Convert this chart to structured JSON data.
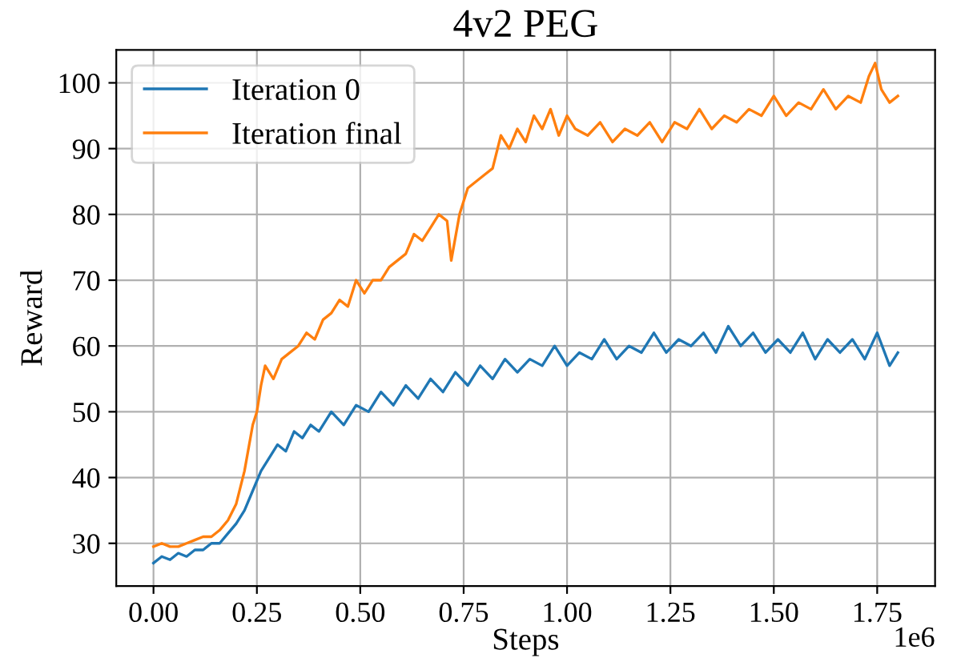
{
  "chart_data": {
    "type": "line",
    "title": "4v2 PEG",
    "xlabel": "Steps",
    "ylabel": "Reward",
    "series": [
      {
        "name": "Iteration 0",
        "color": "#1f77b4",
        "x": [
          0,
          0.02,
          0.04,
          0.06,
          0.08,
          0.1,
          0.12,
          0.14,
          0.16,
          0.18,
          0.2,
          0.22,
          0.24,
          0.26,
          0.28,
          0.3,
          0.32,
          0.34,
          0.36,
          0.38,
          0.4,
          0.43,
          0.46,
          0.49,
          0.52,
          0.55,
          0.58,
          0.61,
          0.64,
          0.67,
          0.7,
          0.73,
          0.76,
          0.79,
          0.82,
          0.85,
          0.88,
          0.91,
          0.94,
          0.97,
          1.0,
          1.03,
          1.06,
          1.09,
          1.12,
          1.15,
          1.18,
          1.21,
          1.24,
          1.27,
          1.3,
          1.33,
          1.36,
          1.39,
          1.42,
          1.45,
          1.48,
          1.51,
          1.54,
          1.57,
          1.6,
          1.63,
          1.66,
          1.69,
          1.72,
          1.75,
          1.78,
          1.8
        ],
        "values": [
          27,
          28,
          27.5,
          28.5,
          28,
          29,
          29,
          30,
          30,
          31.5,
          33,
          35,
          38,
          41,
          43,
          45,
          44,
          47,
          46,
          48,
          47,
          50,
          48,
          51,
          50,
          53,
          51,
          54,
          52,
          55,
          53,
          56,
          54,
          57,
          55,
          58,
          56,
          58,
          57,
          60,
          57,
          59,
          58,
          61,
          58,
          60,
          59,
          62,
          59,
          61,
          60,
          62,
          59,
          63,
          60,
          62,
          59,
          61,
          59,
          62,
          58,
          61,
          59,
          61,
          58,
          62,
          57,
          59
        ]
      },
      {
        "name": "Iteration final",
        "color": "#ff7f0e",
        "x": [
          0,
          0.02,
          0.04,
          0.06,
          0.08,
          0.1,
          0.12,
          0.14,
          0.16,
          0.18,
          0.2,
          0.22,
          0.24,
          0.25,
          0.26,
          0.27,
          0.29,
          0.31,
          0.33,
          0.35,
          0.37,
          0.39,
          0.41,
          0.43,
          0.45,
          0.47,
          0.49,
          0.51,
          0.53,
          0.55,
          0.57,
          0.59,
          0.61,
          0.63,
          0.65,
          0.67,
          0.69,
          0.71,
          0.72,
          0.74,
          0.76,
          0.78,
          0.8,
          0.82,
          0.84,
          0.86,
          0.88,
          0.9,
          0.92,
          0.94,
          0.96,
          0.98,
          1.0,
          1.02,
          1.05,
          1.08,
          1.11,
          1.14,
          1.17,
          1.2,
          1.23,
          1.26,
          1.29,
          1.32,
          1.35,
          1.38,
          1.41,
          1.44,
          1.47,
          1.5,
          1.53,
          1.56,
          1.59,
          1.62,
          1.65,
          1.68,
          1.71,
          1.73,
          1.745,
          1.76,
          1.78,
          1.8
        ],
        "values": [
          29.5,
          30,
          29.5,
          29.5,
          30,
          30.5,
          31,
          31,
          32,
          33.5,
          36,
          41,
          48,
          50,
          54,
          57,
          55,
          58,
          59,
          60,
          62,
          61,
          64,
          65,
          67,
          66,
          70,
          68,
          70,
          70,
          72,
          73,
          74,
          77,
          76,
          78,
          80,
          79,
          73,
          80,
          84,
          85,
          86,
          87,
          92,
          90,
          93,
          91,
          95,
          93,
          96,
          92,
          95,
          93,
          92,
          94,
          91,
          93,
          92,
          94,
          91,
          94,
          93,
          96,
          93,
          95,
          94,
          96,
          95,
          98,
          95,
          97,
          96,
          99,
          96,
          98,
          97,
          101,
          103,
          99,
          97,
          98
        ]
      }
    ],
    "xlim": [
      -0.09,
      1.89
    ],
    "ylim": [
      23.5,
      105
    ],
    "xticks": [
      {
        "value": 0,
        "label": "0.00"
      },
      {
        "value": 0.25,
        "label": "0.25"
      },
      {
        "value": 0.5,
        "label": "0.50"
      },
      {
        "value": 0.75,
        "label": "0.75"
      },
      {
        "value": 1.0,
        "label": "1.00"
      },
      {
        "value": 1.25,
        "label": "1.25"
      },
      {
        "value": 1.5,
        "label": "1.50"
      },
      {
        "value": 1.75,
        "label": "1.75"
      }
    ],
    "yticks": [
      30,
      40,
      50,
      60,
      70,
      80,
      90,
      100
    ],
    "annotations": [
      "1e6"
    ],
    "grid": true,
    "legend": "top left"
  }
}
